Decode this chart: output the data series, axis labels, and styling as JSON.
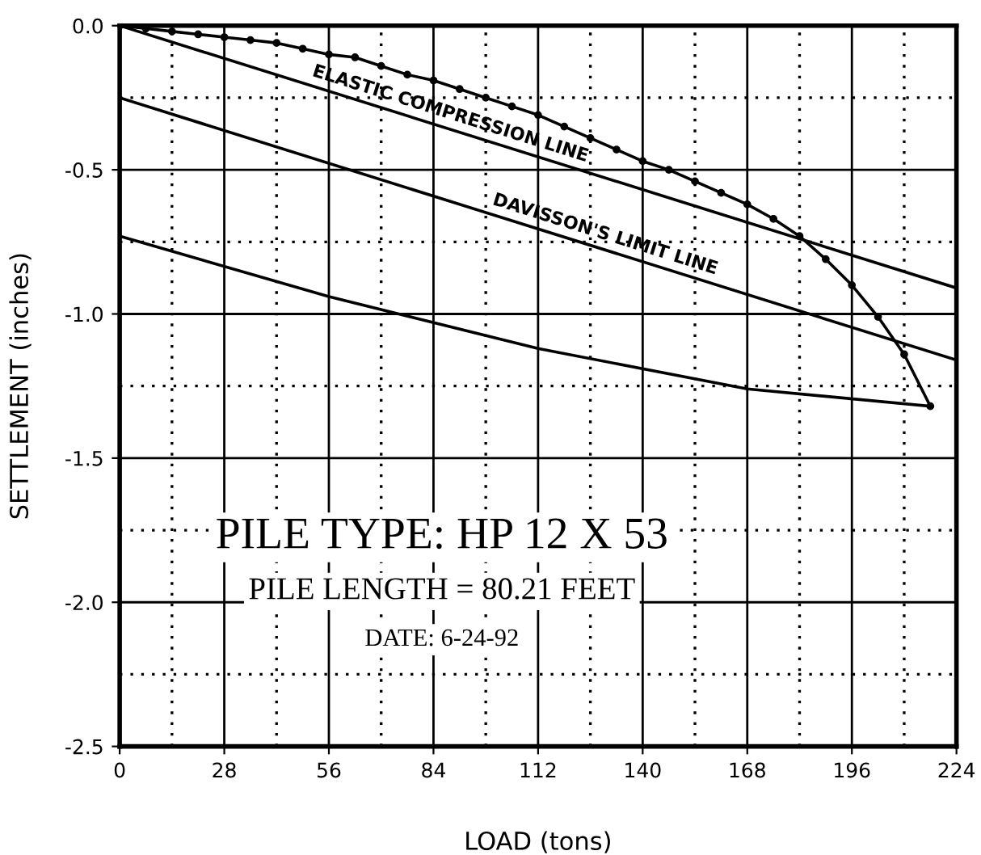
{
  "chart_data": {
    "type": "line",
    "xlabel": "LOAD (tons)",
    "ylabel": "SETTLEMENT (inches)",
    "xlim": [
      0,
      224
    ],
    "xticks": [
      0,
      28,
      56,
      84,
      112,
      140,
      168,
      196,
      224
    ],
    "ylim": [
      -2.5,
      0.0
    ],
    "yticks": [
      {
        "value": -2.5,
        "label": "-2.5"
      },
      {
        "value": -2.0,
        "label": "-2.0"
      },
      {
        "value": -1.5,
        "label": "-1.5"
      },
      {
        "value": -1.0,
        "label": "-1.0"
      },
      {
        "value": -0.5,
        "label": "-0.5"
      },
      {
        "value": 0.0,
        "label": "0.0"
      }
    ],
    "grid": true,
    "series": [
      {
        "color": "#000000",
        "marker": "circle",
        "x": [
          0,
          7,
          14,
          21,
          28,
          35,
          42,
          49,
          56,
          63,
          70,
          77,
          84,
          91,
          98,
          105,
          112,
          119,
          126,
          133,
          140,
          147,
          154,
          161,
          168,
          175,
          182,
          189,
          196,
          203,
          210,
          217
        ],
        "values": [
          0,
          -0.01,
          -0.02,
          -0.03,
          -0.04,
          -0.05,
          -0.06,
          -0.08,
          -0.1,
          -0.11,
          -0.14,
          -0.17,
          -0.19,
          -0.22,
          -0.25,
          -0.28,
          -0.31,
          -0.35,
          -0.39,
          -0.43,
          -0.47,
          -0.5,
          -0.54,
          -0.58,
          -0.62,
          -0.67,
          -0.73,
          -0.81,
          -0.9,
          -1.01,
          -1.14,
          -1.32
        ]
      },
      {
        "color": "#000000",
        "marker": "none",
        "x": [
          217,
          168,
          112,
          56,
          0
        ],
        "values": [
          -1.32,
          -1.26,
          -1.12,
          -0.94,
          -0.73
        ]
      },
      {
        "color": "#000000",
        "marker": "none",
        "x": [
          0,
          224
        ],
        "values": [
          0,
          -0.91
        ]
      },
      {
        "color": "#000000",
        "marker": "none",
        "x": [
          0,
          224
        ],
        "values": [
          -0.25,
          -1.16
        ]
      }
    ],
    "annotations": [
      "ELASTIC COMPRESSION LINE",
      "DAVISSON'S LIMIT LINE",
      "PILE TYPE: HP 12 X 53",
      "PILE LENGTH = 80.21 FEET",
      "DATE: 6-24-92"
    ]
  }
}
